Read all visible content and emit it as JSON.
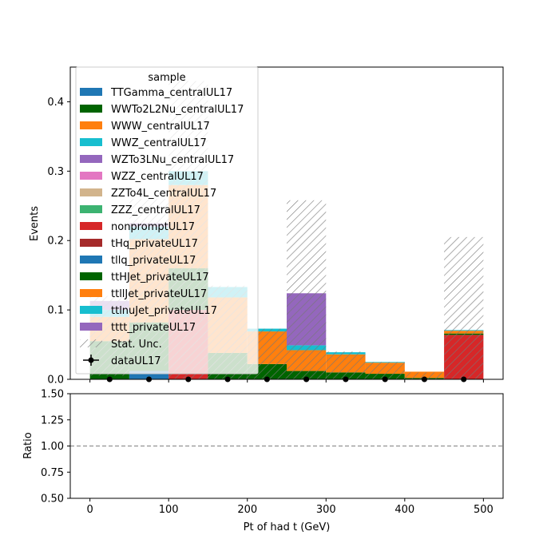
{
  "chart_data": [
    {
      "type": "bar",
      "stacked": true,
      "xlabel": "Pt of had t (GeV)",
      "ylabel": "Events",
      "xlim": [
        -25,
        525
      ],
      "ylim": [
        0,
        0.45
      ],
      "yticks": [
        "0.0",
        "0.1",
        "0.2",
        "0.3",
        "0.4"
      ],
      "xticks": [
        "0",
        "100",
        "200",
        "300",
        "400",
        "500"
      ],
      "bin_edges": [
        0,
        50,
        100,
        150,
        200,
        250,
        300,
        350,
        400,
        450,
        500
      ],
      "series": [
        {
          "name": "TTGamma_centralUL17",
          "color": "#1f77b4",
          "values": [
            0,
            0,
            0,
            0,
            0,
            0,
            0,
            0,
            0,
            0
          ]
        },
        {
          "name": "WWTo2L2Nu_centralUL17",
          "color": "#006400",
          "values": [
            0,
            0,
            0,
            0,
            0,
            0,
            0,
            0,
            0,
            0
          ]
        },
        {
          "name": "WWW_centralUL17",
          "color": "#ff7f0e",
          "values": [
            0,
            0,
            0,
            0,
            0,
            0,
            0,
            0,
            0,
            0
          ]
        },
        {
          "name": "WWZ_centralUL17",
          "color": "#17becf",
          "values": [
            0,
            0,
            0,
            0,
            0,
            0,
            0,
            0,
            0,
            0
          ]
        },
        {
          "name": "WZTo3LNu_centralUL17",
          "color": "#9467bd",
          "values": [
            0,
            0,
            0,
            0,
            0,
            0,
            0,
            0,
            0,
            0
          ]
        },
        {
          "name": "WZZ_centralUL17",
          "color": "#e377c2",
          "values": [
            0,
            0,
            0,
            0,
            0,
            0,
            0,
            0,
            0,
            0
          ]
        },
        {
          "name": "ZZTo4L_centralUL17",
          "color": "#d2b48c",
          "values": [
            0,
            0,
            0,
            0,
            0,
            0,
            0,
            0,
            0,
            0
          ]
        },
        {
          "name": "ZZZ_centralUL17",
          "color": "#3cb371",
          "values": [
            0,
            0,
            0,
            0,
            0,
            0,
            0,
            0,
            0,
            0
          ]
        },
        {
          "name": "nonpromptUL17",
          "color": "#d62728",
          "values": [
            0,
            0,
            0.1,
            0,
            0,
            0,
            0,
            0,
            0,
            0.064
          ]
        },
        {
          "name": "tHq_privateUL17",
          "color": "#a52a2a",
          "values": [
            0,
            0,
            0,
            0,
            0,
            0,
            0,
            0,
            0,
            0
          ]
        },
        {
          "name": "tllq_privateUL17",
          "color": "#1f77b4",
          "values": [
            0,
            0.012,
            0,
            0,
            0,
            0,
            0,
            0,
            0,
            0
          ]
        },
        {
          "name": "ttHJet_privateUL17",
          "color": "#006400",
          "values": [
            0.055,
            0.07,
            0.06,
            0.038,
            0.022,
            0.012,
            0.01,
            0.008,
            0.002,
            0.002
          ]
        },
        {
          "name": "ttllJet_privateUL17",
          "color": "#ff7f0e",
          "values": [
            0.035,
            0.12,
            0.12,
            0.08,
            0.047,
            0.03,
            0.026,
            0.016,
            0.009,
            0.004
          ]
        },
        {
          "name": "ttlnuJet_privateUL17",
          "color": "#17becf",
          "values": [
            0.01,
            0.018,
            0.02,
            0.015,
            0.004,
            0.007,
            0.003,
            0.001,
            0,
            0.001
          ]
        },
        {
          "name": "tttt_privateUL17",
          "color": "#9467bd",
          "values": [
            0.013,
            0.005,
            0,
            0,
            0,
            0.075,
            0,
            0,
            0,
            0
          ]
        }
      ],
      "stat_unc_label": "Stat. Unc.",
      "stat_unc": {
        "low": [
          0.005,
          0.02,
          0.0,
          0.0,
          0.0,
          0.0,
          0.0,
          0.0,
          0.0,
          0.0
        ],
        "high": [
          0.12,
          0.26,
          0.43,
          0.135,
          0.073,
          0.258,
          0.04,
          0.025,
          0.01,
          0.205
        ]
      },
      "data_label": "dataUL17",
      "data_points": {
        "x": [
          25,
          75,
          125,
          175,
          225,
          275,
          325,
          375,
          425,
          475
        ],
        "y": [
          0,
          0,
          0,
          0,
          0,
          0,
          0,
          0,
          0,
          0
        ]
      },
      "legend": {
        "title": "sample",
        "placement": "upper-left"
      }
    },
    {
      "type": "line",
      "xlabel": "Pt of had t (GeV)",
      "ylabel": "Ratio",
      "xlim": [
        -25,
        525
      ],
      "ylim": [
        0.5,
        1.5
      ],
      "yticks": [
        "0.50",
        "0.75",
        "1.00",
        "1.25",
        "1.50"
      ],
      "xticks": [
        "0",
        "100",
        "200",
        "300",
        "400",
        "500"
      ],
      "reference_line": 1.0
    }
  ]
}
